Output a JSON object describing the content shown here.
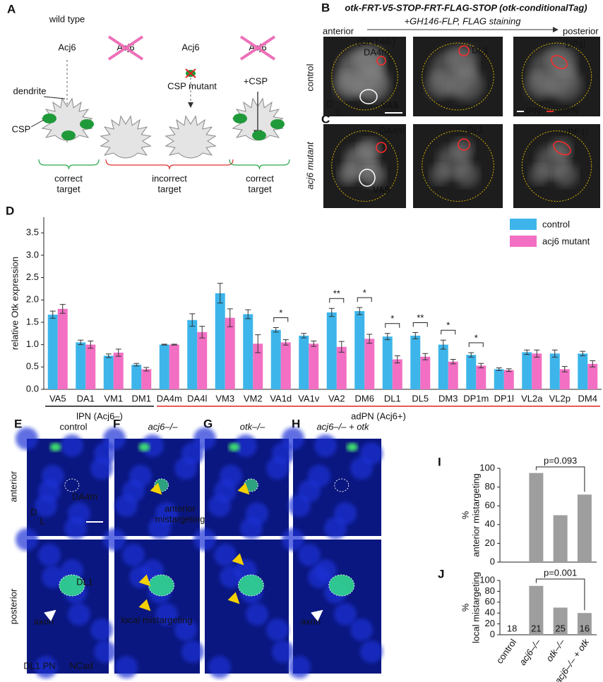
{
  "panel_a": {
    "label": "A",
    "title": "wild type",
    "genes": [
      "Acj6",
      "Acj6",
      "Acj6",
      "Acj6"
    ],
    "csp_mutant": "CSP mutant",
    "plus_csp": "+CSP",
    "dendrite": "dendrite",
    "csp": "CSP",
    "outcomes": [
      "correct\ntarget",
      "incorrect\ntarget",
      "correct\ntarget"
    ]
  },
  "panel_bc": {
    "labels": [
      "B",
      "C"
    ],
    "title": "otk-FRT-V5-STOP-FRT-FLAG-STOP (otk-conditionalTag)",
    "subtitle": "+GH146-FLP, FLAG staining",
    "anterior": "anterior",
    "posterior": "posterior",
    "rows": [
      "control",
      "acj6 mutant"
    ],
    "b_labels": [
      "(GH146-)\nDA4m",
      "VA5",
      "DL1",
      "DP1l"
    ],
    "c_labels": [
      "DA4m",
      "VA5",
      "DL1",
      "DP1l"
    ],
    "legend": [
      "lPN",
      "adPN"
    ],
    "axes": [
      "D",
      "L"
    ]
  },
  "panels_eh": {
    "labels": [
      "E",
      "F",
      "G",
      "H"
    ],
    "columns": [
      "control",
      "acj6–/–",
      "otk–/–",
      "acj6–/– + otk"
    ],
    "rows": [
      "anterior",
      "posterior"
    ],
    "e_labels": [
      "DA4m",
      "DL1",
      "axon"
    ],
    "f_labels": [
      "anterior\nmistargeting",
      "local mistargeting"
    ],
    "h_labels": [
      "axon"
    ],
    "stain": [
      "DL1 PN",
      "NCad"
    ],
    "axes": [
      "D",
      "L"
    ]
  },
  "chart_data": [
    {
      "label": "D",
      "type": "bar",
      "y_label": "relative Otk expression",
      "categories": [
        "VA5",
        "DA1",
        "VM1",
        "DM1",
        "DA4m",
        "DA4l",
        "VM3",
        "VM2",
        "VA1d",
        "VA1v",
        "VA2",
        "DM6",
        "DL1",
        "DL5",
        "DM3",
        "DP1m",
        "DP1l",
        "VL2a",
        "VL2p",
        "DM4"
      ],
      "series": [
        {
          "name": "control",
          "color": "#3db5ea",
          "values": [
            1.67,
            1.05,
            0.75,
            0.55,
            1.0,
            1.55,
            2.15,
            1.68,
            1.33,
            1.2,
            1.72,
            1.75,
            1.18,
            1.2,
            1.0,
            0.77,
            0.45,
            0.83,
            0.8,
            0.8
          ],
          "errors": [
            0.08,
            0.05,
            0.04,
            0.03,
            0.01,
            0.14,
            0.22,
            0.1,
            0.05,
            0.05,
            0.09,
            0.08,
            0.07,
            0.07,
            0.1,
            0.05,
            0.03,
            0.05,
            0.08,
            0.05
          ]
        },
        {
          "name": "acj6 mutant",
          "color": "#f26fc3",
          "values": [
            1.8,
            1.0,
            0.82,
            0.45,
            1.0,
            1.28,
            1.6,
            1.02,
            1.05,
            1.02,
            0.95,
            1.13,
            0.67,
            0.73,
            0.62,
            0.53,
            0.43,
            0.8,
            0.45,
            0.57
          ],
          "errors": [
            0.1,
            0.08,
            0.08,
            0.04,
            0.01,
            0.13,
            0.2,
            0.2,
            0.06,
            0.06,
            0.12,
            0.1,
            0.08,
            0.07,
            0.05,
            0.05,
            0.03,
            0.08,
            0.06,
            0.07
          ]
        }
      ],
      "ylim": [
        0,
        3.85
      ],
      "yticks": [
        {
          "value": 0,
          "label": "0.0"
        },
        0.5,
        {
          "value": 1,
          "label": "1.0"
        },
        1.5,
        {
          "value": 2,
          "label": "2.0"
        },
        2.5,
        {
          "value": 3,
          "label": "3.0"
        },
        3.5
      ],
      "legend": "upper right",
      "groups": [
        {
          "label": "lPN (Acj6–)",
          "color": "#111111",
          "categories": [
            "VA5",
            "DA1",
            "VM1",
            "DM1"
          ]
        },
        {
          "label": "adPN (Acj6+)",
          "color": "#e02020",
          "categories": [
            "DA4m",
            "DA4l",
            "VM3",
            "VM2",
            "VA1d",
            "VA1v",
            "VA2",
            "DM6",
            "DL1",
            "DL5",
            "DM3",
            "DP1m",
            "DP1l",
            "VL2a",
            "VL2p",
            "DM4"
          ]
        }
      ],
      "significance": [
        {
          "category": "VA1d",
          "label": "*"
        },
        {
          "category": "VA2",
          "label": "**"
        },
        {
          "category": "DM6",
          "label": "*"
        },
        {
          "category": "DL1",
          "label": "*"
        },
        {
          "category": "DL5",
          "label": "**"
        },
        {
          "category": "DM3",
          "label": "*"
        },
        {
          "category": "DP1m",
          "label": "*"
        }
      ]
    },
    {
      "label": "I",
      "type": "bar",
      "y_label": "%\nanterior mistargeting",
      "categories": [
        null,
        null,
        null,
        null
      ],
      "values": [
        0,
        95,
        50,
        72
      ],
      "color": "#9e9e9e",
      "ylim": [
        0,
        100
      ],
      "yticks": [
        0,
        20,
        40,
        60,
        80,
        100
      ],
      "annotation": "p=0.093"
    },
    {
      "label": "J",
      "type": "bar",
      "y_label": "%\nlocal mistargeting",
      "categories": [
        "control",
        "acj6–/–",
        "otk–/–",
        "acj6–/– + otk"
      ],
      "values": [
        0,
        90,
        50,
        40
      ],
      "n": [
        18,
        21,
        25,
        16
      ],
      "color": "#9e9e9e",
      "ylim": [
        0,
        100
      ],
      "yticks": [
        0,
        20,
        40,
        60,
        80,
        100
      ],
      "annotation": "p=0.001"
    }
  ]
}
